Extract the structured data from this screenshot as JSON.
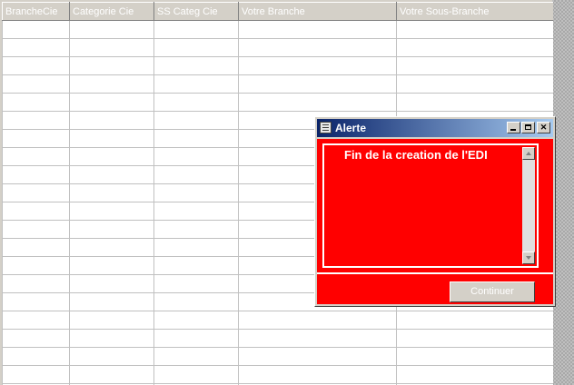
{
  "grid": {
    "columns": [
      "BrancheCie",
      "Categorie Cie",
      "SS Categ Cie",
      "Votre Branche",
      "Votre Sous-Branche"
    ],
    "row_count": 21
  },
  "dialog": {
    "title": "Alerte",
    "message": "Fin de la creation de l'EDI",
    "continue_label": "Continuer"
  },
  "colors": {
    "dialog_background": "#ff0000",
    "title_gradient_start": "#0a246a",
    "title_gradient_end": "#a6caf0"
  }
}
